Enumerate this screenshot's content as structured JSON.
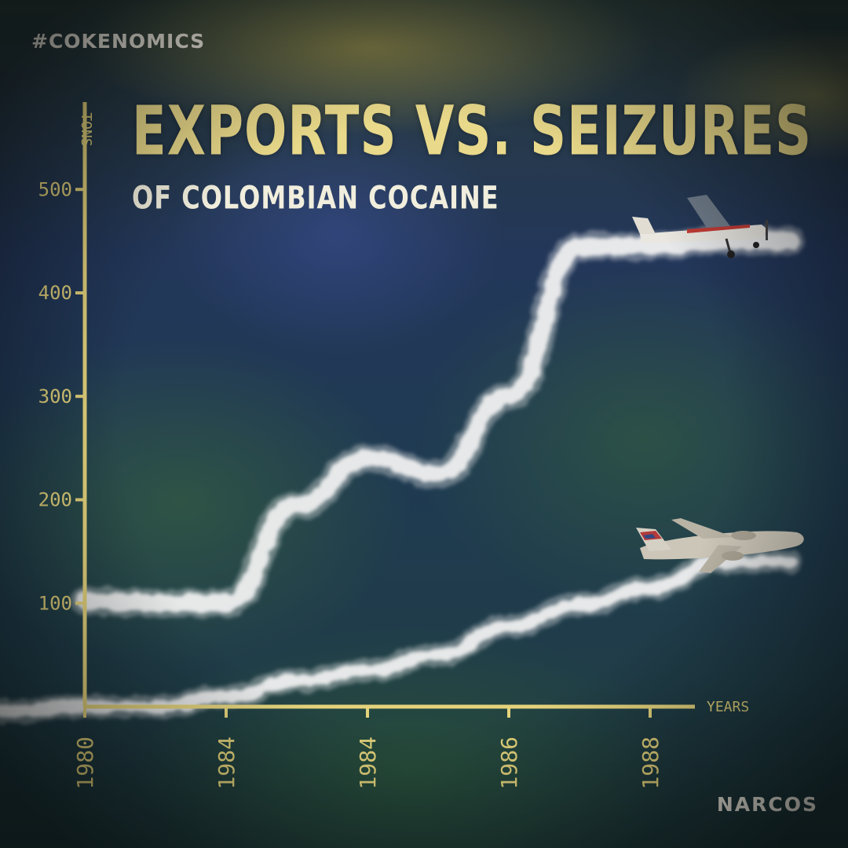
{
  "hashtag": "#COKENOMICS",
  "brand": "NARCOS",
  "colors": {
    "axis": "#e4d37c",
    "title": "#e9d98a",
    "trail": "#f2f2f2",
    "text": "#f4f1e6"
  },
  "icons": {
    "exports_series_marker": "small-propeller-plane-icon",
    "seizures_series_marker": "us-cargo-jet-icon"
  },
  "chart_data": {
    "type": "line",
    "title": "EXPORTS VS. SEIZURES",
    "subtitle": "OF COLOMBIAN COCAINE",
    "xlabel": "YEARS",
    "ylabel": "TONS",
    "ylim": [
      0,
      500
    ],
    "yticks": [
      100,
      200,
      300,
      400,
      500
    ],
    "x_tick_labels": [
      "1980",
      "1984",
      "1984",
      "1986",
      "1988"
    ],
    "grid": false,
    "series": [
      {
        "x": [
          0,
          0.5,
          1,
          1.5,
          2,
          2.5,
          3,
          3.5,
          4,
          4.5,
          5
        ],
        "values": [
          102,
          100,
          100,
          195,
          240,
          225,
          300,
          445,
          445,
          450,
          450
        ]
      },
      {
        "x": [
          0,
          0.5,
          1,
          1.5,
          2,
          2.5,
          3,
          3.5,
          4,
          4.5,
          5
        ],
        "values": [
          0,
          0,
          10,
          25,
          35,
          50,
          78,
          98,
          115,
          140,
          140
        ]
      }
    ]
  }
}
